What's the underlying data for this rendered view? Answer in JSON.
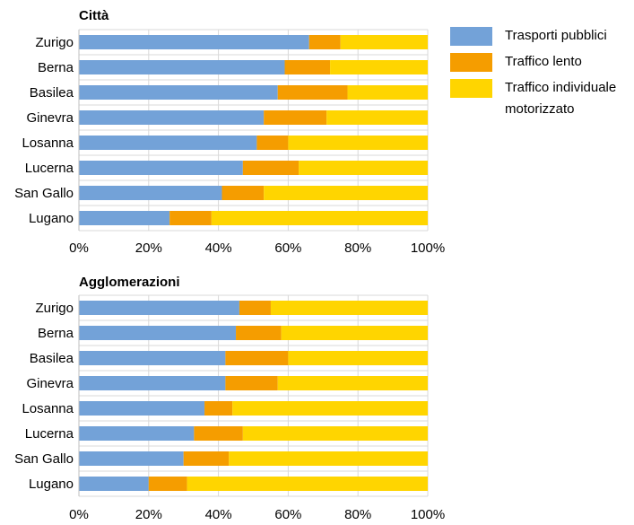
{
  "colors": {
    "public": "#73a2d8",
    "slow": "#f59d00",
    "private": "#ffd500",
    "grid": "#d9d9d9",
    "plot_bg": "#ffffff"
  },
  "legend": [
    {
      "key": "public",
      "label": "Trasporti pubblici"
    },
    {
      "key": "slow",
      "label": "Traffico lento"
    },
    {
      "key": "private",
      "label": "Traffico individuale motorizzato"
    }
  ],
  "chart_data": [
    {
      "type": "bar",
      "orientation": "horizontal",
      "stacked": "percent",
      "title": "Città",
      "categories": [
        "Zurigo",
        "Berna",
        "Basilea",
        "Ginevra",
        "Losanna",
        "Lucerna",
        "San Gallo",
        "Lugano"
      ],
      "series": [
        {
          "name": "Trasporti pubblici",
          "values": [
            66,
            59,
            57,
            53,
            51,
            47,
            41,
            26
          ]
        },
        {
          "name": "Traffico lento",
          "values": [
            9,
            13,
            20,
            18,
            9,
            16,
            12,
            12
          ]
        },
        {
          "name": "Traffico individuale motorizzato",
          "values": [
            25,
            28,
            23,
            29,
            40,
            37,
            47,
            62
          ]
        }
      ],
      "xticks": [
        "0%",
        "20%",
        "40%",
        "60%",
        "80%",
        "100%"
      ],
      "xlim": [
        0,
        100
      ],
      "grid": true,
      "legend": "right"
    },
    {
      "type": "bar",
      "orientation": "horizontal",
      "stacked": "percent",
      "title": "Agglomerazioni",
      "categories": [
        "Zurigo",
        "Berna",
        "Basilea",
        "Ginevra",
        "Losanna",
        "Lucerna",
        "San Gallo",
        "Lugano"
      ],
      "series": [
        {
          "name": "Trasporti pubblici",
          "values": [
            46,
            45,
            42,
            42,
            36,
            33,
            30,
            20
          ]
        },
        {
          "name": "Traffico lento",
          "values": [
            9,
            13,
            18,
            15,
            8,
            14,
            13,
            11
          ]
        },
        {
          "name": "Traffico individuale motorizzato",
          "values": [
            45,
            42,
            40,
            43,
            56,
            53,
            57,
            69
          ]
        }
      ],
      "xticks": [
        "0%",
        "20%",
        "40%",
        "60%",
        "80%",
        "100%"
      ],
      "xlim": [
        0,
        100
      ],
      "grid": true,
      "legend": "right"
    }
  ]
}
